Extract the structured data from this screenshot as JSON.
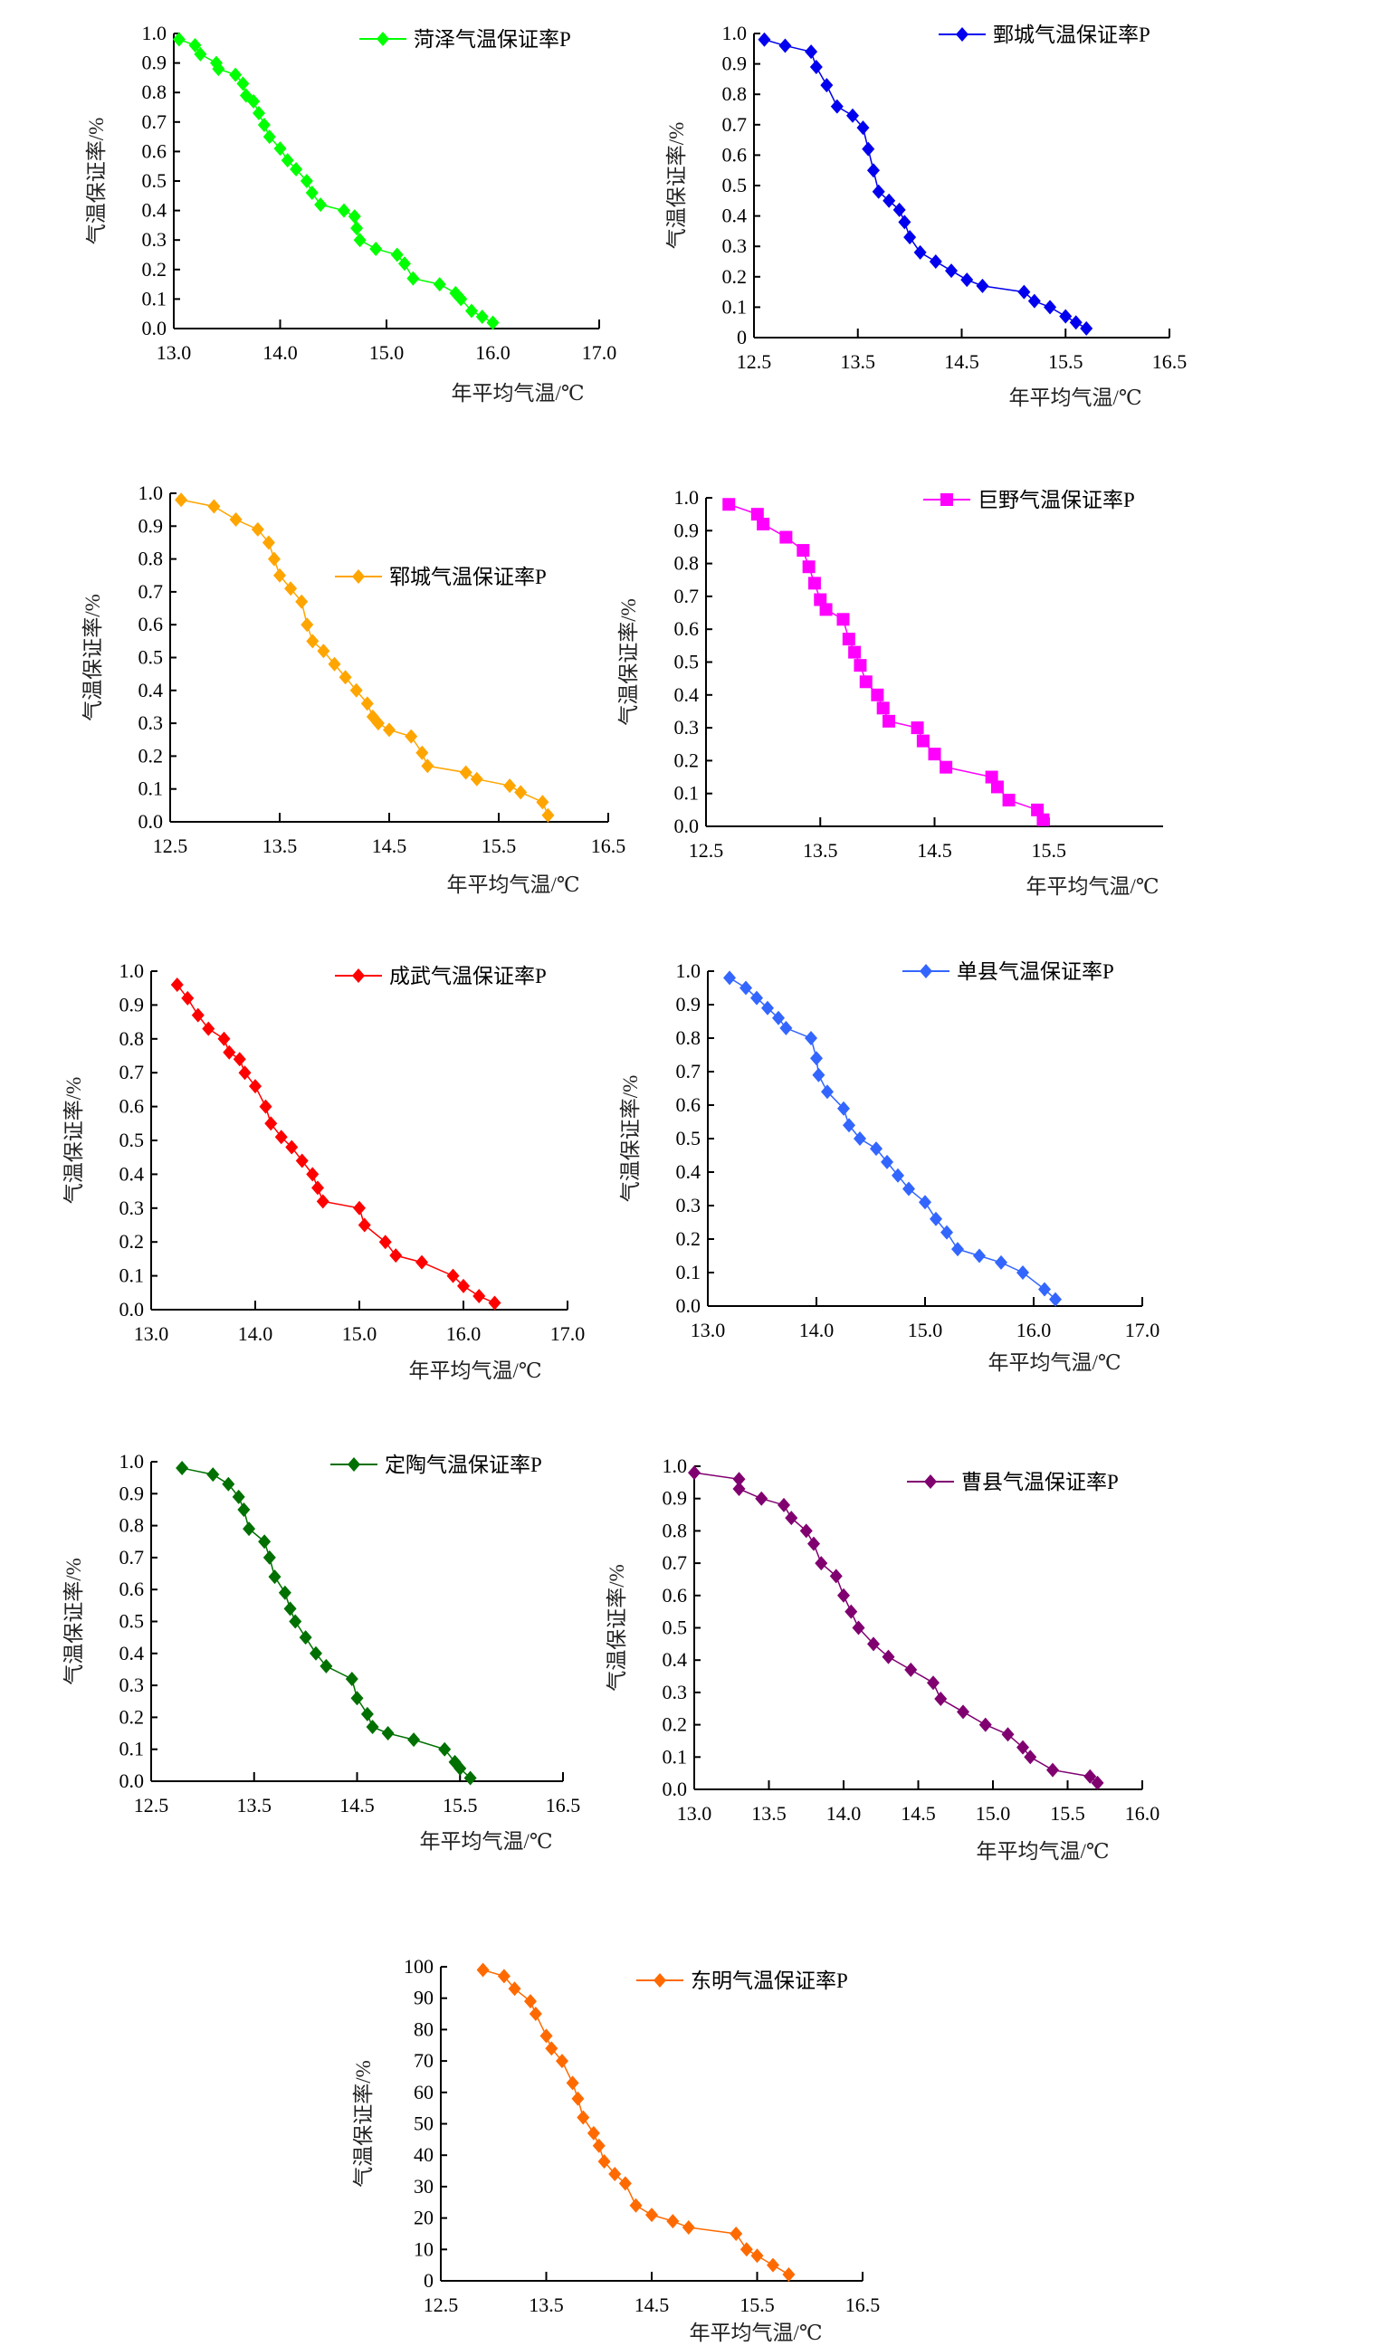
{
  "chart_data": [
    {
      "type": "line",
      "title": "",
      "legend": "菏泽气温保证率P",
      "color": "#00ff00",
      "marker": "diamond",
      "xlabel": "年平均气温/℃",
      "ylabel": "气温保证率/%",
      "xlim": [
        13,
        17
      ],
      "ylim": [
        0,
        1
      ],
      "xticks": [
        "13.0",
        "14.0",
        "15.0",
        "16.0",
        "17.0"
      ],
      "yticks": [
        "0.0",
        "0.1",
        "0.2",
        "0.3",
        "0.4",
        "0.5",
        "0.6",
        "0.7",
        "0.8",
        "0.9",
        "1.0"
      ],
      "x": [
        13.05,
        13.2,
        13.25,
        13.4,
        13.42,
        13.58,
        13.65,
        13.68,
        13.75,
        13.8,
        13.85,
        13.9,
        14.0,
        14.07,
        14.15,
        14.25,
        14.3,
        14.38,
        14.6,
        14.7,
        14.72,
        14.75,
        14.9,
        15.1,
        15.17,
        15.25,
        15.5,
        15.65,
        15.7,
        15.8,
        15.9,
        16.0
      ],
      "y": [
        0.98,
        0.96,
        0.93,
        0.9,
        0.88,
        0.86,
        0.83,
        0.79,
        0.77,
        0.73,
        0.69,
        0.65,
        0.61,
        0.57,
        0.54,
        0.5,
        0.46,
        0.42,
        0.4,
        0.38,
        0.34,
        0.3,
        0.27,
        0.25,
        0.22,
        0.17,
        0.15,
        0.12,
        0.1,
        0.06,
        0.04,
        0.02
      ]
    },
    {
      "type": "line",
      "title": "",
      "legend": "鄄城气温保证率P",
      "color": "#0000ee",
      "marker": "diamond",
      "xlabel": "年平均气温/℃",
      "ylabel": "气温保证率/%",
      "xlim": [
        12.5,
        16.5
      ],
      "ylim": [
        0,
        1
      ],
      "xticks": [
        "12.5",
        "13.5",
        "14.5",
        "15.5",
        "16.5"
      ],
      "yticks": [
        "0",
        "0.1",
        "0.2",
        "0.3",
        "0.4",
        "0.5",
        "0.6",
        "0.7",
        "0.8",
        "0.9",
        "1.0"
      ],
      "x": [
        12.6,
        12.8,
        13.05,
        13.1,
        13.2,
        13.3,
        13.45,
        13.55,
        13.6,
        13.65,
        13.7,
        13.8,
        13.9,
        13.95,
        14.0,
        14.1,
        14.25,
        14.4,
        14.55,
        14.7,
        15.1,
        15.2,
        15.35,
        15.5,
        15.6,
        15.7
      ],
      "y": [
        0.98,
        0.96,
        0.94,
        0.89,
        0.83,
        0.76,
        0.73,
        0.69,
        0.62,
        0.55,
        0.48,
        0.45,
        0.42,
        0.38,
        0.33,
        0.28,
        0.25,
        0.22,
        0.19,
        0.17,
        0.15,
        0.12,
        0.1,
        0.07,
        0.05,
        0.03
      ]
    },
    {
      "type": "line",
      "title": "",
      "legend": "郓城气温保证率P",
      "color": "#ffa500",
      "marker": "diamond",
      "xlabel": "年平均气温/℃",
      "ylabel": "气温保证率/%",
      "xlim": [
        12.5,
        16.5
      ],
      "ylim": [
        0,
        1
      ],
      "xticks": [
        "12.5",
        "13.5",
        "14.5",
        "15.5",
        "16.5"
      ],
      "yticks": [
        "0.0",
        "0.1",
        "0.2",
        "0.3",
        "0.4",
        "0.5",
        "0.6",
        "0.7",
        "0.8",
        "0.9",
        "1.0"
      ],
      "x": [
        12.6,
        12.9,
        13.1,
        13.3,
        13.4,
        13.45,
        13.5,
        13.6,
        13.7,
        13.75,
        13.8,
        13.9,
        14.0,
        14.1,
        14.2,
        14.3,
        14.35,
        14.4,
        14.5,
        14.7,
        14.8,
        14.85,
        15.2,
        15.3,
        15.6,
        15.7,
        15.9,
        15.95
      ],
      "y": [
        0.98,
        0.96,
        0.92,
        0.89,
        0.85,
        0.8,
        0.75,
        0.71,
        0.67,
        0.6,
        0.55,
        0.52,
        0.48,
        0.44,
        0.4,
        0.36,
        0.32,
        0.3,
        0.28,
        0.26,
        0.21,
        0.17,
        0.15,
        0.13,
        0.11,
        0.09,
        0.06,
        0.02
      ]
    },
    {
      "type": "line",
      "title": "",
      "legend": "巨野气温保证率P",
      "color": "#ff00ff",
      "marker": "square",
      "xlabel": "年平均气温/℃",
      "ylabel": "气温保证率/%",
      "xlim": [
        12.5,
        16.5
      ],
      "ylim": [
        0,
        1
      ],
      "xticks": [
        "12.5",
        "13.5",
        "14.5",
        "15.5"
      ],
      "yticks": [
        "0.0",
        "0.1",
        "0.2",
        "0.3",
        "0.4",
        "0.5",
        "0.6",
        "0.7",
        "0.8",
        "0.9",
        "1.0"
      ],
      "x": [
        12.7,
        12.95,
        13.0,
        13.2,
        13.35,
        13.4,
        13.45,
        13.5,
        13.55,
        13.7,
        13.75,
        13.8,
        13.85,
        13.9,
        14.0,
        14.05,
        14.1,
        14.35,
        14.4,
        14.5,
        14.6,
        15.0,
        15.05,
        15.15,
        15.4,
        15.45
      ],
      "y": [
        0.98,
        0.95,
        0.92,
        0.88,
        0.84,
        0.79,
        0.74,
        0.69,
        0.66,
        0.63,
        0.57,
        0.53,
        0.49,
        0.44,
        0.4,
        0.36,
        0.32,
        0.3,
        0.26,
        0.22,
        0.18,
        0.15,
        0.12,
        0.08,
        0.05,
        0.02
      ]
    },
    {
      "type": "line",
      "title": "",
      "legend": "成武气温保证率P",
      "color": "#ff0000",
      "marker": "diamond",
      "xlabel": "年平均气温/℃",
      "ylabel": "气温保证率/%",
      "xlim": [
        13,
        17
      ],
      "ylim": [
        0,
        1
      ],
      "xticks": [
        "13.0",
        "14.0",
        "15.0",
        "16.0",
        "17.0"
      ],
      "yticks": [
        "0.0",
        "0.1",
        "0.2",
        "0.3",
        "0.4",
        "0.5",
        "0.6",
        "0.7",
        "0.8",
        "0.9",
        "1.0"
      ],
      "x": [
        13.25,
        13.35,
        13.45,
        13.55,
        13.7,
        13.75,
        13.85,
        13.9,
        14.0,
        14.1,
        14.15,
        14.25,
        14.35,
        14.45,
        14.55,
        14.6,
        14.65,
        15.0,
        15.05,
        15.25,
        15.35,
        15.6,
        15.9,
        16.0,
        16.15,
        16.3
      ],
      "y": [
        0.96,
        0.92,
        0.87,
        0.83,
        0.8,
        0.76,
        0.74,
        0.7,
        0.66,
        0.6,
        0.55,
        0.51,
        0.48,
        0.44,
        0.4,
        0.36,
        0.32,
        0.3,
        0.25,
        0.2,
        0.16,
        0.14,
        0.1,
        0.07,
        0.04,
        0.02
      ]
    },
    {
      "type": "line",
      "title": "",
      "legend": "单县气温保证率P",
      "color": "#3366ff",
      "marker": "diamond",
      "xlabel": "年平均气温/℃",
      "ylabel": "气温保证率/%",
      "xlim": [
        13,
        17
      ],
      "ylim": [
        0,
        1
      ],
      "xticks": [
        "13.0",
        "14.0",
        "15.0",
        "16.0",
        "17.0"
      ],
      "yticks": [
        "0.0",
        "0.1",
        "0.2",
        "0.3",
        "0.4",
        "0.5",
        "0.6",
        "0.7",
        "0.8",
        "0.9",
        "1.0"
      ],
      "x": [
        13.2,
        13.35,
        13.45,
        13.55,
        13.65,
        13.72,
        13.95,
        14.0,
        14.02,
        14.1,
        14.25,
        14.3,
        14.4,
        14.55,
        14.65,
        14.75,
        14.85,
        15.0,
        15.1,
        15.2,
        15.3,
        15.5,
        15.7,
        15.9,
        16.1,
        16.2
      ],
      "y": [
        0.98,
        0.95,
        0.92,
        0.89,
        0.86,
        0.83,
        0.8,
        0.74,
        0.69,
        0.64,
        0.59,
        0.54,
        0.5,
        0.47,
        0.43,
        0.39,
        0.35,
        0.31,
        0.26,
        0.22,
        0.17,
        0.15,
        0.13,
        0.1,
        0.05,
        0.02
      ]
    },
    {
      "type": "line",
      "title": "",
      "legend": "定陶气温保证率P",
      "color": "#007000",
      "marker": "diamond",
      "xlabel": "年平均气温/℃",
      "ylabel": "气温保证率/%",
      "xlim": [
        12.5,
        16.5
      ],
      "ylim": [
        0,
        1
      ],
      "xticks": [
        "12.5",
        "13.5",
        "14.5",
        "15.5",
        "16.5"
      ],
      "yticks": [
        "0.0",
        "0.1",
        "0.2",
        "0.3",
        "0.4",
        "0.5",
        "0.6",
        "0.7",
        "0.8",
        "0.9",
        "1.0"
      ],
      "x": [
        12.8,
        13.1,
        13.25,
        13.35,
        13.4,
        13.45,
        13.6,
        13.65,
        13.7,
        13.8,
        13.85,
        13.9,
        14.0,
        14.1,
        14.2,
        14.45,
        14.5,
        14.6,
        14.65,
        14.8,
        15.05,
        15.35,
        15.45,
        15.5,
        15.6
      ],
      "y": [
        0.98,
        0.96,
        0.93,
        0.89,
        0.85,
        0.79,
        0.75,
        0.7,
        0.64,
        0.59,
        0.54,
        0.5,
        0.45,
        0.4,
        0.36,
        0.32,
        0.26,
        0.21,
        0.17,
        0.15,
        0.13,
        0.1,
        0.06,
        0.04,
        0.01
      ]
    },
    {
      "type": "line",
      "title": "",
      "legend": "曹县气温保证率P",
      "color": "#800070",
      "marker": "diamond",
      "xlabel": "年平均气温/℃",
      "ylabel": "气温保证率/%",
      "xlim": [
        13,
        16
      ],
      "ylim": [
        0,
        1
      ],
      "xticks": [
        "13.0",
        "13.5",
        "14.0",
        "14.5",
        "15.0",
        "15.5",
        "16.0"
      ],
      "yticks": [
        "0.0",
        "0.1",
        "0.2",
        "0.3",
        "0.4",
        "0.5",
        "0.6",
        "0.7",
        "0.8",
        "0.9",
        "1.0"
      ],
      "x": [
        13.0,
        13.3,
        13.3,
        13.45,
        13.6,
        13.65,
        13.75,
        13.8,
        13.85,
        13.95,
        14.0,
        14.05,
        14.1,
        14.2,
        14.3,
        14.45,
        14.6,
        14.65,
        14.8,
        14.95,
        15.1,
        15.2,
        15.25,
        15.4,
        15.65,
        15.7
      ],
      "y": [
        0.98,
        0.96,
        0.93,
        0.9,
        0.88,
        0.84,
        0.8,
        0.76,
        0.7,
        0.66,
        0.6,
        0.55,
        0.5,
        0.45,
        0.41,
        0.37,
        0.33,
        0.28,
        0.24,
        0.2,
        0.17,
        0.13,
        0.1,
        0.06,
        0.04,
        0.02
      ]
    },
    {
      "type": "line",
      "title": "",
      "legend": "东明气温保证率P",
      "color": "#ff6a00",
      "marker": "diamond",
      "xlabel": "年平均气温/℃",
      "ylabel": "气温保证率/%",
      "xlim": [
        12.5,
        16.5
      ],
      "ylim": [
        0,
        100
      ],
      "xticks": [
        "12.5",
        "13.5",
        "14.5",
        "15.5",
        "16.5"
      ],
      "yticks": [
        "0",
        "10",
        "20",
        "30",
        "40",
        "50",
        "60",
        "70",
        "80",
        "90",
        "100"
      ],
      "x": [
        12.9,
        13.1,
        13.2,
        13.35,
        13.4,
        13.5,
        13.55,
        13.65,
        13.75,
        13.8,
        13.85,
        13.95,
        14.0,
        14.05,
        14.15,
        14.25,
        14.35,
        14.5,
        14.7,
        14.85,
        15.3,
        15.4,
        15.5,
        15.65,
        15.8
      ],
      "y": [
        99,
        97,
        93,
        89,
        85,
        78,
        74,
        70,
        63,
        58,
        52,
        47,
        43,
        38,
        34,
        31,
        24,
        21,
        19,
        17,
        15,
        10,
        8,
        5,
        2
      ]
    }
  ]
}
